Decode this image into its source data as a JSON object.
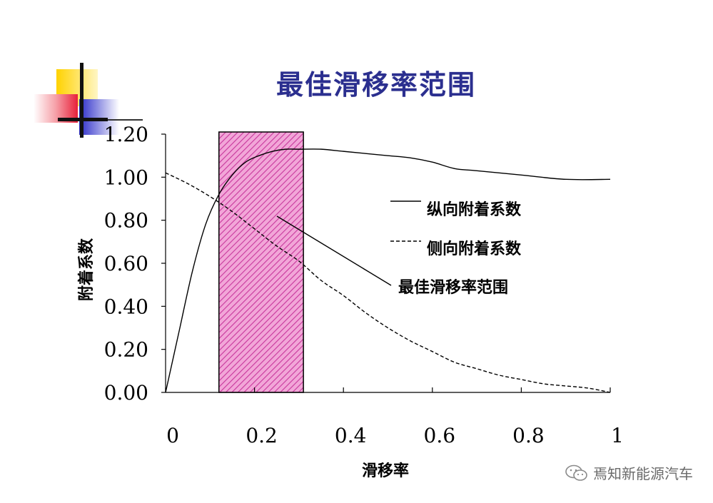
{
  "title": "最佳滑移率范围",
  "watermark": "焉知新能源汽车",
  "chart_data": {
    "type": "line",
    "xlabel": "滑移率",
    "ylabel": "附着系数",
    "xlim": [
      0,
      1
    ],
    "ylim": [
      0,
      1.2
    ],
    "x_ticks": [
      "0",
      "0.2",
      "0.4",
      "0.6",
      "0.8",
      "1"
    ],
    "y_ticks": [
      "0.00",
      "0.20",
      "0.40",
      "0.60",
      "0.80",
      "1.00",
      "1.20"
    ],
    "series": [
      {
        "name": "纵向附着系数",
        "style": "solid",
        "x": [
          0,
          0.03,
          0.06,
          0.09,
          0.12,
          0.15,
          0.18,
          0.21,
          0.24,
          0.27,
          0.3,
          0.35,
          0.4,
          0.45,
          0.5,
          0.55,
          0.6,
          0.65,
          0.7,
          0.8,
          0.9,
          1.0
        ],
        "y": [
          0,
          0.28,
          0.56,
          0.78,
          0.92,
          1.01,
          1.07,
          1.1,
          1.12,
          1.13,
          1.13,
          1.13,
          1.12,
          1.11,
          1.1,
          1.09,
          1.07,
          1.04,
          1.03,
          1.01,
          0.99,
          0.99
        ]
      },
      {
        "name": "侧向附着系数",
        "style": "dashed",
        "x": [
          0,
          0.05,
          0.1,
          0.15,
          0.2,
          0.25,
          0.3,
          0.35,
          0.4,
          0.45,
          0.5,
          0.55,
          0.6,
          0.65,
          0.7,
          0.75,
          0.8,
          0.85,
          0.9,
          0.95,
          1.0
        ],
        "y": [
          1.02,
          0.97,
          0.91,
          0.84,
          0.76,
          0.68,
          0.61,
          0.52,
          0.45,
          0.37,
          0.3,
          0.24,
          0.19,
          0.14,
          0.11,
          0.08,
          0.06,
          0.04,
          0.03,
          0.02,
          0.0
        ]
      }
    ],
    "band": {
      "name": "最佳滑移率范围",
      "x_start": 0.12,
      "x_end": 0.31,
      "y_top": 1.21,
      "fill": "#f2a6d8",
      "hatch": "#c8379c"
    },
    "legend": {
      "position": "right",
      "entries": [
        "纵向附着系数",
        "侧向附着系数",
        "最佳滑移率范围"
      ]
    },
    "grid": false
  },
  "colors": {
    "title": "#2b2f8f",
    "deco_yellow": "#ffd200",
    "deco_red": "#e8203a",
    "deco_blue": "#2c2dc9"
  }
}
